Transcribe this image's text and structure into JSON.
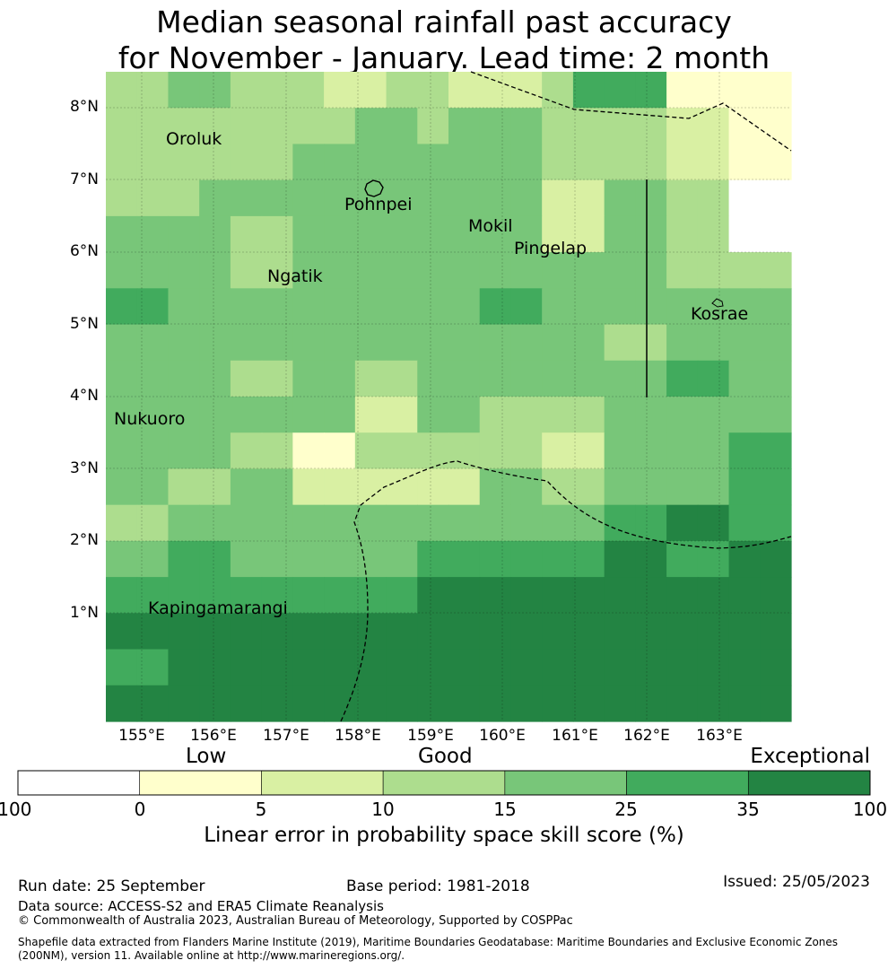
{
  "title_line1": "Median seasonal rainfall past accuracy",
  "title_line2": "for November - January. Lead time: 2 month",
  "map": {
    "lon_ticks": [
      "155°E",
      "156°E",
      "157°E",
      "158°E",
      "159°E",
      "160°E",
      "161°E",
      "162°E",
      "163°E"
    ],
    "lat_ticks": [
      "8°N",
      "7°N",
      "6°N",
      "5°N",
      "4°N",
      "3°N",
      "2°N",
      "1°N"
    ],
    "places": [
      {
        "name": "Oroluk"
      },
      {
        "name": "Pohnpei"
      },
      {
        "name": "Mokil"
      },
      {
        "name": "Pingelap"
      },
      {
        "name": "Ngatik"
      },
      {
        "name": "Kosrae"
      },
      {
        "name": "Nukuoro"
      },
      {
        "name": "Kapingamarangi"
      }
    ],
    "grid_category_rows": [
      [
        3,
        3,
        4,
        4,
        3,
        3,
        3,
        2,
        2,
        3,
        3,
        2,
        2,
        2,
        3,
        5,
        5,
        5,
        1,
        1,
        1,
        1
      ],
      [
        3,
        3,
        3,
        3,
        3,
        3,
        3,
        3,
        4,
        4,
        3,
        4,
        4,
        4,
        3,
        3,
        3,
        3,
        2,
        2,
        1,
        1
      ],
      [
        3,
        3,
        3,
        3,
        3,
        3,
        4,
        4,
        4,
        4,
        4,
        4,
        4,
        4,
        3,
        3,
        3,
        3,
        2,
        2,
        1,
        1
      ],
      [
        3,
        3,
        3,
        4,
        4,
        4,
        4,
        4,
        4,
        4,
        4,
        4,
        4,
        4,
        2,
        2,
        4,
        4,
        3,
        3,
        0,
        0
      ],
      [
        4,
        4,
        4,
        4,
        3,
        3,
        4,
        4,
        4,
        4,
        4,
        4,
        4,
        4,
        2,
        2,
        4,
        4,
        3,
        3,
        0,
        0
      ],
      [
        4,
        4,
        4,
        4,
        3,
        3,
        4,
        4,
        4,
        4,
        4,
        4,
        4,
        4,
        4,
        4,
        4,
        4,
        3,
        3,
        3,
        3
      ],
      [
        5,
        5,
        4,
        4,
        4,
        4,
        4,
        4,
        4,
        4,
        4,
        4,
        5,
        5,
        4,
        4,
        4,
        4,
        4,
        4,
        4,
        4
      ],
      [
        4,
        4,
        4,
        4,
        4,
        4,
        4,
        4,
        4,
        4,
        4,
        4,
        4,
        4,
        4,
        4,
        3,
        3,
        4,
        4,
        4,
        4
      ],
      [
        4,
        4,
        4,
        4,
        3,
        3,
        4,
        4,
        3,
        3,
        4,
        4,
        4,
        4,
        4,
        4,
        4,
        4,
        5,
        5,
        4,
        4
      ],
      [
        4,
        4,
        4,
        4,
        4,
        4,
        4,
        4,
        2,
        2,
        4,
        4,
        3,
        3,
        3,
        3,
        4,
        4,
        4,
        4,
        4,
        4
      ],
      [
        4,
        4,
        4,
        4,
        3,
        3,
        1,
        1,
        3,
        3,
        3,
        3,
        3,
        3,
        2,
        2,
        4,
        4,
        4,
        4,
        5,
        5
      ],
      [
        4,
        4,
        3,
        3,
        4,
        4,
        2,
        2,
        2,
        2,
        2,
        2,
        4,
        4,
        3,
        3,
        4,
        4,
        4,
        4,
        5,
        5
      ],
      [
        3,
        3,
        4,
        4,
        4,
        4,
        4,
        4,
        4,
        4,
        4,
        4,
        4,
        4,
        4,
        4,
        5,
        5,
        6,
        6,
        5,
        5
      ],
      [
        4,
        4,
        5,
        5,
        4,
        4,
        4,
        4,
        4,
        4,
        5,
        5,
        5,
        5,
        5,
        5,
        6,
        6,
        5,
        5,
        6,
        6
      ],
      [
        5,
        5,
        5,
        5,
        5,
        5,
        5,
        5,
        5,
        5,
        6,
        6,
        6,
        6,
        6,
        6,
        6,
        6,
        6,
        6,
        6,
        6
      ],
      [
        6,
        6,
        6,
        6,
        6,
        6,
        6,
        6,
        6,
        6,
        6,
        6,
        6,
        6,
        6,
        6,
        6,
        6,
        6,
        6,
        6,
        6
      ],
      [
        5,
        5,
        6,
        6,
        6,
        6,
        6,
        6,
        6,
        6,
        6,
        6,
        6,
        6,
        6,
        6,
        6,
        6,
        6,
        6,
        6,
        6
      ],
      [
        6,
        6,
        6,
        6,
        6,
        6,
        6,
        6,
        6,
        6,
        6,
        6,
        6,
        6,
        6,
        6,
        6,
        6,
        6,
        6,
        6,
        6
      ]
    ]
  },
  "colorbar": {
    "categories": [
      "Low",
      "Good",
      "Exceptional"
    ],
    "ticks": [
      "-100",
      "0",
      "5",
      "10",
      "15",
      "25",
      "35",
      "100"
    ],
    "bins": [
      {
        "range": "-100 to 0",
        "color": "#ffffff"
      },
      {
        "range": "0 to 5",
        "color": "#ffffcc"
      },
      {
        "range": "5 to 10",
        "color": "#d9f0a3"
      },
      {
        "range": "10 to 15",
        "color": "#addd8e"
      },
      {
        "range": "15 to 25",
        "color": "#78c679"
      },
      {
        "range": "25 to 35",
        "color": "#41ab5d"
      },
      {
        "range": "35 to 100",
        "color": "#238443"
      }
    ],
    "label": "Linear error in probability space skill score (%)"
  },
  "footer": {
    "run_date": "Run date: 25 September",
    "base_period": "Base period: 1981-2018",
    "issued": "Issued: 25/05/2023",
    "data_source": "Data source: ACCESS-S2 and ERA5 Climate Reanalysis",
    "copyright": "© Commonwealth of Australia 2023, Australian Bureau of Meteorology, Supported by COSPPac",
    "shapefile": "Shapefile data extracted from Flanders Marine Institute (2019), Maritime Boundaries Geodatabase: Maritime Boundaries and Exclusive Economic Zones (200NM), version 11. Available online at http://www.marineregions.org/."
  }
}
